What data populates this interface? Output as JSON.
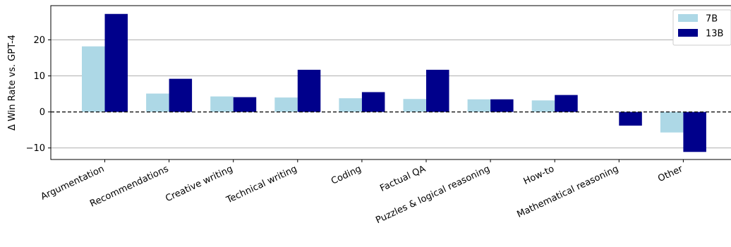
{
  "chart_data": {
    "type": "bar",
    "title": "",
    "xlabel": "",
    "ylabel": "Δ Win Rate vs. GPT-4",
    "ylim": [
      -13.2,
      29.5
    ],
    "yticks": [
      -10,
      0,
      10,
      20
    ],
    "ytick_labels": [
      "−10",
      "0",
      "10",
      "20"
    ],
    "grid": "horizontal",
    "zero_line": "dashed",
    "legend_position": "top-right",
    "categories": [
      "Argumentation",
      "Recommendations",
      "Creative writing",
      "Technical writing",
      "Coding",
      "Factual QA",
      "Puzzles & logical reasoning",
      "How-to",
      "Mathematical reasoning",
      "Other"
    ],
    "series": [
      {
        "name": "7B",
        "color": "#add8e6",
        "values": [
          18.2,
          5.1,
          4.3,
          4.0,
          3.8,
          3.6,
          3.5,
          3.2,
          0.0,
          -5.7
        ]
      },
      {
        "name": "13B",
        "color": "#00008b",
        "values": [
          27.2,
          9.2,
          4.1,
          11.7,
          5.5,
          11.7,
          3.5,
          4.7,
          -3.8,
          -11.1
        ]
      }
    ]
  }
}
